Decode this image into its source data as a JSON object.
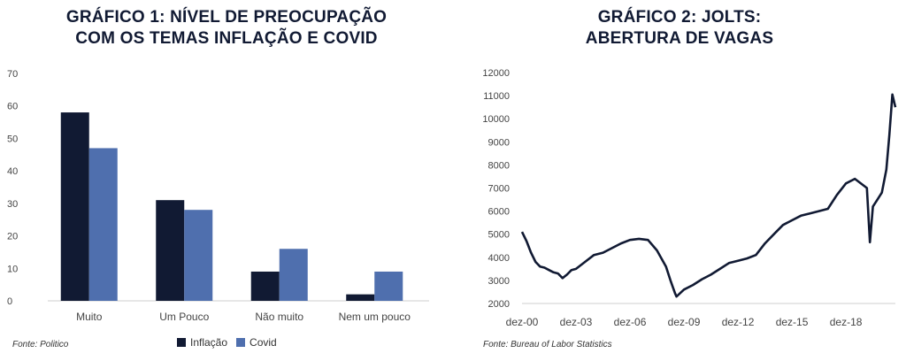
{
  "colors": {
    "inflacao": "#111a33",
    "covid": "#4f6fae",
    "axis": "#cfcfcf",
    "text": "#444444",
    "line": "#111a33"
  },
  "chart1": {
    "title_line1": "GRÁFICO 1: NÍVEL DE PREOCUPAÇÃO",
    "title_line2": "COM OS TEMAS INFLAÇÃO E COVID",
    "source": "Fonte: Politico",
    "legend": [
      "Inflação",
      "Covid"
    ]
  },
  "chart2": {
    "title_line1": "GRÁFICO 2: JOLTS:",
    "title_line2": "ABERTURA DE VAGAS",
    "source": "Fonte: Bureau of Labor Statistics"
  },
  "chart_data": [
    {
      "type": "bar",
      "title": "GRÁFICO 1: NÍVEL DE PREOCUPAÇÃO COM OS TEMAS INFLAÇÃO E COVID",
      "categories": [
        "Muito",
        "Um Pouco",
        "Não muito",
        "Nem um pouco"
      ],
      "series": [
        {
          "name": "Inflação",
          "values": [
            58,
            31,
            9,
            2
          ]
        },
        {
          "name": "Covid",
          "values": [
            47,
            28,
            16,
            9
          ]
        }
      ],
      "ylim": [
        0,
        70
      ],
      "yticks": [
        0,
        10,
        20,
        30,
        40,
        50,
        60,
        70
      ],
      "legend_position": "bottom",
      "grid": false
    },
    {
      "type": "line",
      "title": "GRÁFICO 2: JOLTS: ABERTURA DE VAGAS",
      "ylim": [
        2000,
        12000
      ],
      "yticks": [
        2000,
        3000,
        4000,
        5000,
        6000,
        7000,
        8000,
        9000,
        10000,
        11000,
        12000
      ],
      "xticks": [
        "dez-00",
        "dez-03",
        "dez-06",
        "dez-09",
        "dez-12",
        "dez-15",
        "dez-18"
      ],
      "grid": false,
      "series": [
        {
          "x": [
            "2000-12",
            "2001-03",
            "2001-06",
            "2001-09",
            "2001-12",
            "2002-03",
            "2002-06",
            "2002-09",
            "2002-12",
            "2003-03",
            "2003-06",
            "2003-09",
            "2003-12",
            "2004-06",
            "2004-12",
            "2005-06",
            "2005-12",
            "2006-06",
            "2006-12",
            "2007-06",
            "2007-12",
            "2008-06",
            "2008-12",
            "2009-03",
            "2009-06",
            "2009-07",
            "2009-12",
            "2010-06",
            "2010-12",
            "2011-06",
            "2011-12",
            "2012-06",
            "2012-12",
            "2013-06",
            "2013-12",
            "2014-06",
            "2014-12",
            "2015-06",
            "2015-12",
            "2016-06",
            "2016-12",
            "2017-06",
            "2017-12",
            "2018-06",
            "2018-12",
            "2019-06",
            "2019-12",
            "2020-02",
            "2020-04",
            "2020-06",
            "2020-09",
            "2020-12",
            "2021-03",
            "2021-05",
            "2021-07",
            "2021-09"
          ],
          "y": [
            5100,
            4700,
            4200,
            3800,
            3600,
            3550,
            3450,
            3350,
            3300,
            3100,
            3250,
            3450,
            3500,
            3800,
            4100,
            4200,
            4400,
            4600,
            4750,
            4800,
            4750,
            4300,
            3600,
            3000,
            2450,
            2300,
            2600,
            2800,
            3050,
            3250,
            3500,
            3750,
            3850,
            3950,
            4100,
            4600,
            5000,
            5400,
            5600,
            5800,
            5900,
            6000,
            6100,
            6700,
            7200,
            7400,
            7100,
            7000,
            4650,
            6200,
            6500,
            6800,
            7800,
            9300,
            11050,
            10500
          ]
        }
      ]
    }
  ]
}
